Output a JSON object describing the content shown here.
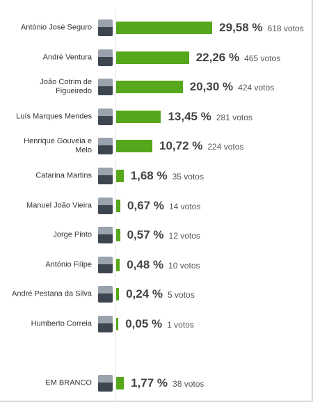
{
  "chart_data": {
    "type": "bar",
    "orientation": "horizontal",
    "color": "#56a71b",
    "categories": [
      "António José Seguro",
      "André Ventura",
      "João Cotrim de Figueiredo",
      "Luís Marques Mendes",
      "Henrique Gouveia e Melo",
      "Catarina Martins",
      "Manuel João Vieira",
      "Jorge Pinto",
      "António Filipe",
      "André Pestana da Silva",
      "Humberto Correia",
      "EM BRANCO"
    ],
    "values": [
      29.58,
      22.26,
      20.3,
      13.45,
      10.72,
      1.68,
      0.67,
      0.57,
      0.48,
      0.24,
      0.05,
      1.77
    ],
    "value_labels": [
      "29,58 %",
      "22,26 %",
      "20,30 %",
      "13,45 %",
      "10,72 %",
      "1,68 %",
      "0,67 %",
      "0,57 %",
      "0,48 %",
      "0,24 %",
      "0,05 %",
      "1,77 %"
    ],
    "vote_labels": [
      "618 votos",
      "465 votos",
      "424 votos",
      "281 votos",
      "224 votos",
      "35 votos",
      "14 votos",
      "12 votos",
      "10 votos",
      "5 votos",
      "1 votos",
      "38 votos"
    ]
  }
}
